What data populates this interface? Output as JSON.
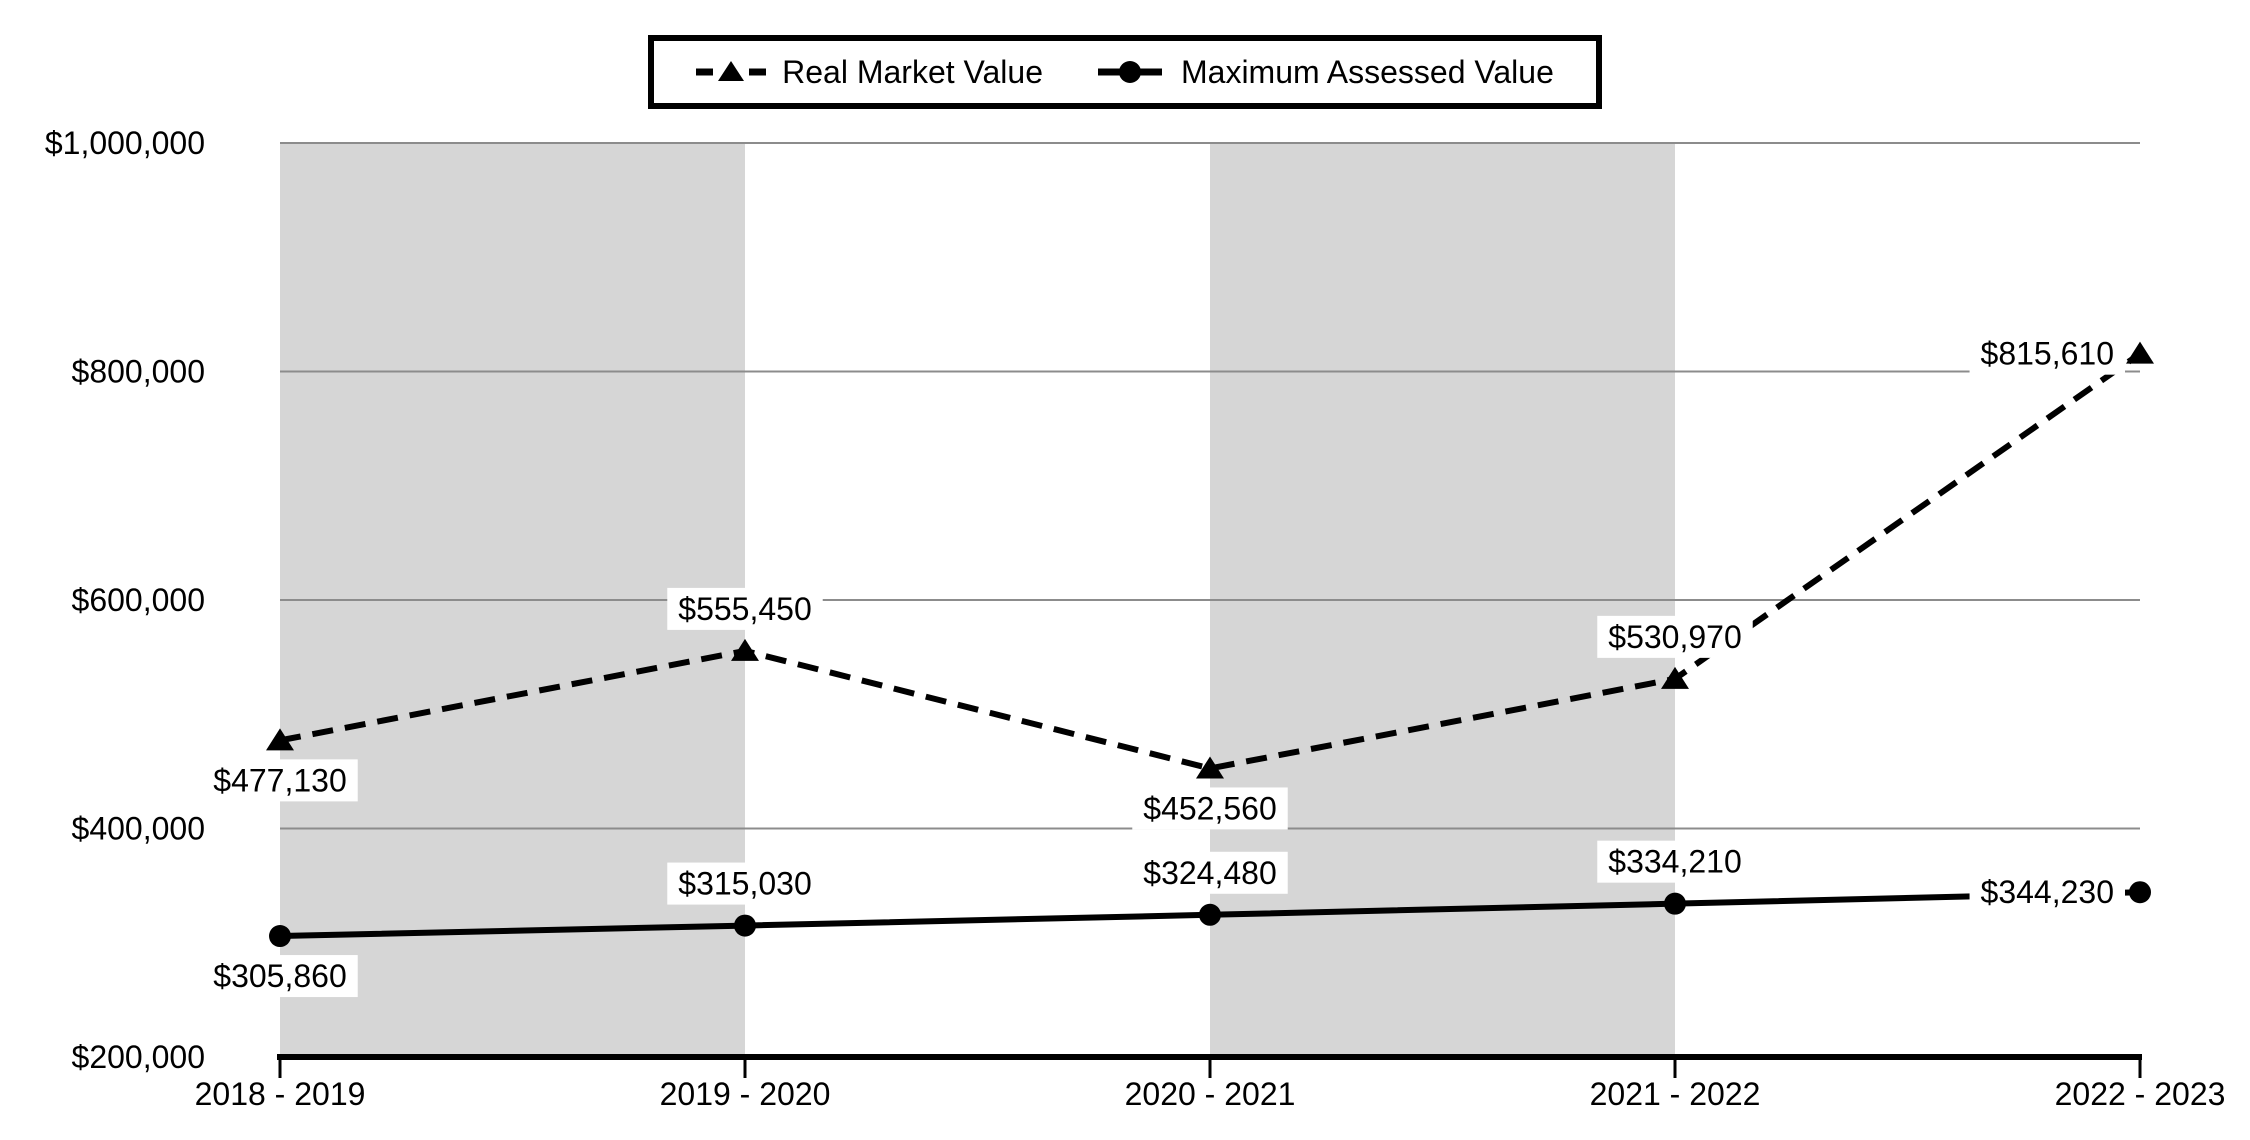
{
  "chart_data": {
    "type": "line",
    "title": "",
    "xlabel": "",
    "ylabel": "",
    "categories": [
      "2018 - 2019",
      "2019 - 2020",
      "2020 - 2021",
      "2021 - 2022",
      "2022 - 2023"
    ],
    "series": [
      {
        "name": "Real Market Value",
        "values": [
          477130,
          555450,
          452560,
          530970,
          815610
        ],
        "data_labels": [
          "$477,130",
          "$555,450",
          "$452,560",
          "$530,970",
          "$815,610"
        ],
        "label_positions": [
          "below",
          "above",
          "below",
          "above",
          "left"
        ],
        "line_style": "dashed",
        "marker": "triangle",
        "color": "#000000"
      },
      {
        "name": "Maximum Assessed Value",
        "values": [
          305860,
          315030,
          324480,
          334210,
          344230
        ],
        "data_labels": [
          "$305,860",
          "$315,030",
          "$324,480",
          "$334,210",
          "$344,230"
        ],
        "label_positions": [
          "below",
          "above",
          "above",
          "above",
          "left"
        ],
        "line_style": "solid",
        "marker": "circle",
        "color": "#000000"
      }
    ],
    "ylim": [
      200000,
      1000000
    ],
    "ytick_values": [
      200000,
      400000,
      600000,
      800000,
      1000000
    ],
    "ytick_labels": [
      "$200,000",
      "$400,000",
      "$600,000",
      "$800,000",
      "$1,000,000"
    ],
    "grid": true,
    "legend_position": "top-center",
    "plot_bands": {
      "color": "#d6d6d6",
      "ranges": [
        [
          0,
          1
        ],
        [
          2,
          3
        ]
      ]
    },
    "colors": {
      "gridline": "#8c8c8c",
      "axis": "#000000",
      "series": "#000000",
      "label_background": "#ffffff",
      "background": "#ffffff"
    }
  }
}
